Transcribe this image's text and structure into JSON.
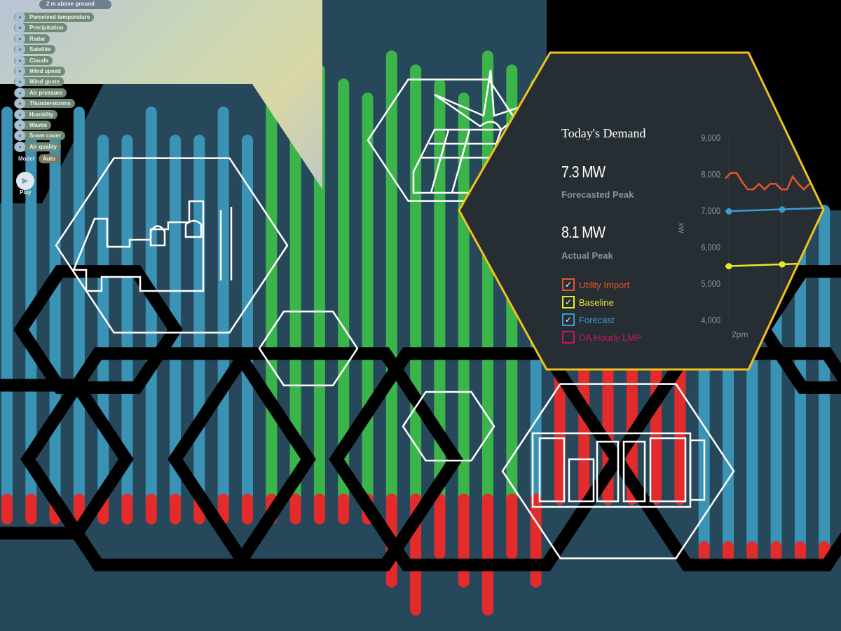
{
  "weather_map": {
    "level_dropdown": "2 m above ground",
    "layers": [
      "Perceived temperature",
      "Precipitation",
      "Radar",
      "Satellite",
      "Clouds",
      "Wind speed",
      "Wind gusts",
      "Air pressure",
      "Thunderstorms",
      "Humidity",
      "Waves",
      "Snow cover",
      "Air quality"
    ],
    "model_label": "Model",
    "model_value": "Auto",
    "play_label": "Play"
  },
  "demand_panel": {
    "title": "Today's Demand",
    "forecasted_peak_value": "7.3 MW",
    "forecasted_peak_label": "Forecasted Peak",
    "actual_peak_value": "8.1 MW",
    "actual_peak_label": "Actual Peak",
    "legend": [
      {
        "label": "Utility Import",
        "checked": true,
        "color": "#e8542a"
      },
      {
        "label": "Baseline",
        "checked": true,
        "color": "#e6e92a"
      },
      {
        "label": "Forecast",
        "checked": true,
        "color": "#3a9bd0"
      },
      {
        "label": "DA Hourly LMP",
        "checked": false,
        "color": "#c2185b"
      }
    ],
    "check_glyph": "✓",
    "border_color": "#f2c21b"
  },
  "chart_data": {
    "type": "line",
    "ylabel": "kW",
    "y_ticks": [
      "9,000",
      "8,000",
      "7,000",
      "6,000",
      "5,000",
      "4,000"
    ],
    "ylim": [
      4000,
      9000
    ],
    "x_ticks": [
      "2pm"
    ],
    "series": [
      {
        "name": "Utility Import",
        "color": "#e8542a",
        "values": [
          7900,
          8050,
          8050,
          7800,
          7600,
          7600,
          7750,
          7600,
          7750,
          7750,
          7600,
          7600,
          7950,
          7750,
          7600,
          7750,
          7750,
          7750
        ]
      },
      {
        "name": "Forecast",
        "color": "#3a9bd0",
        "values": [
          7000,
          7050,
          7100
        ]
      },
      {
        "name": "Baseline",
        "color": "#e6e92a",
        "values": [
          5500,
          5550,
          5600
        ]
      }
    ]
  },
  "colors": {
    "background": "#27475a",
    "bar_blue": "#3a93b5",
    "bar_green": "#3bb54a",
    "bar_red": "#e32b2b",
    "hex_line": "#ffffff"
  }
}
